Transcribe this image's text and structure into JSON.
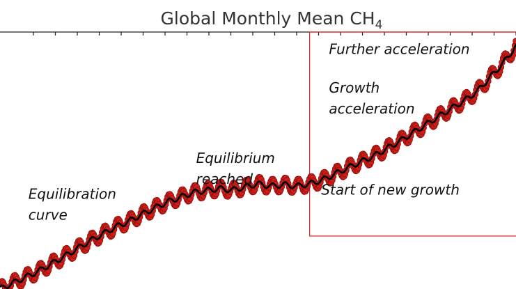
{
  "chart_data": {
    "type": "scatter",
    "title": "Global Monthly Mean CH",
    "title_subscript": "4",
    "xlabel": "",
    "ylabel": "",
    "xlim": [
      1983.0,
      2023.0
    ],
    "ylim": [
      1620,
      1950
    ],
    "grid": false,
    "colors": {
      "points": "#cc1f1a",
      "points_edge": "#8b0f0c",
      "trend": "#000000",
      "highlight_box": "#e03030"
    },
    "highlight_box": {
      "x": [
        2007.0,
        2023.0
      ],
      "y": [
        1688,
        1950
      ]
    },
    "series": [
      {
        "marker": "dots",
        "seasonal_amplitude": 9,
        "trend": {
          "x": [
            1983,
            1986,
            1988,
            1990,
            1992,
            1993,
            1994,
            1996,
            1998,
            2000,
            2001,
            2002,
            2003,
            2004,
            2005,
            2006,
            2007,
            2008,
            2010,
            2012,
            2014,
            2016,
            2018,
            2019,
            2020,
            2021,
            2022,
            2023
          ],
          "y": [
            1620,
            1643,
            1662,
            1682,
            1700,
            1707,
            1716,
            1732,
            1744,
            1749,
            1747,
            1751,
            1755,
            1752,
            1754,
            1752,
            1755,
            1760,
            1776,
            1791,
            1810,
            1831,
            1852,
            1862,
            1874,
            1892,
            1910,
            1932
          ]
        }
      }
    ],
    "annotations": [
      {
        "lines": [
          "Further acceleration"
        ],
        "x": 2008.5,
        "y": 1922
      },
      {
        "lines": [
          "Growth",
          "acceleration"
        ],
        "x": 2008.5,
        "y": 1872
      },
      {
        "lines": [
          "Equilibrium",
          "reached"
        ],
        "x": 1998.2,
        "y": 1782
      },
      {
        "lines": [
          "Equilibration",
          "curve"
        ],
        "x": 1985.2,
        "y": 1736
      },
      {
        "lines": [
          "Start of new growth"
        ],
        "x": 2007.9,
        "y": 1741
      }
    ]
  }
}
